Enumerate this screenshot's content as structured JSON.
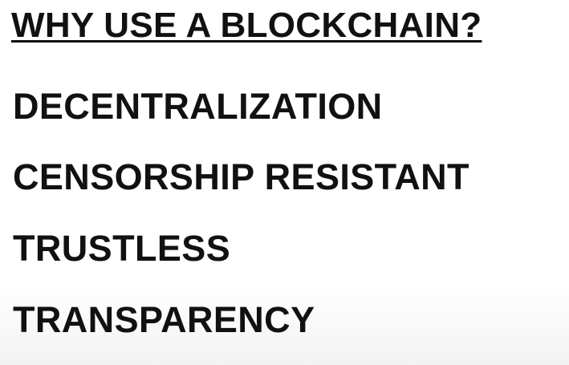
{
  "slide": {
    "title": "WHY USE A BLOCKCHAIN?",
    "items": [
      {
        "label": "DECENTRALIZATION"
      },
      {
        "label": "CENSORSHIP RESISTANT"
      },
      {
        "label": "TRUSTLESS"
      },
      {
        "label": "TRANSPARENCY"
      }
    ]
  }
}
